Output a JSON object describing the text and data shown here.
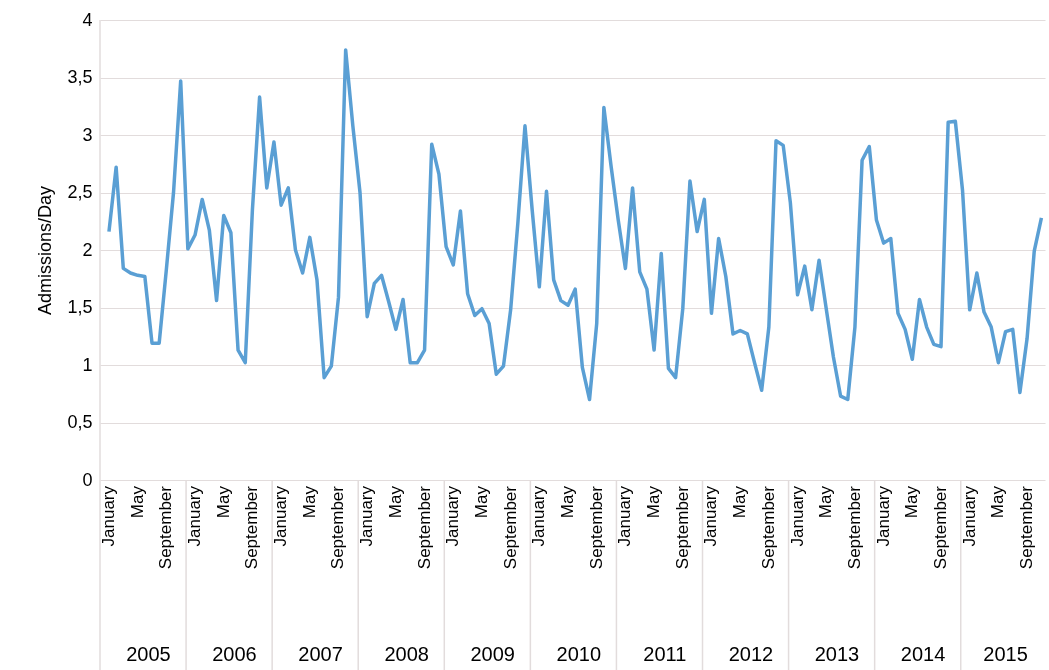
{
  "chart_data": {
    "type": "line",
    "ylabel": "Admissions/Day",
    "categories": [
      "January",
      null,
      null,
      null,
      "May",
      null,
      null,
      null,
      "September",
      null,
      null,
      null,
      "January",
      null,
      null,
      null,
      "May",
      null,
      null,
      null,
      "September",
      null,
      null,
      null,
      "January",
      null,
      null,
      null,
      "May",
      null,
      null,
      null,
      "September",
      null,
      null,
      null,
      "January",
      null,
      null,
      null,
      "May",
      null,
      null,
      null,
      "September",
      null,
      null,
      null,
      "January",
      null,
      null,
      null,
      "May",
      null,
      null,
      null,
      "September",
      null,
      null,
      null,
      "January",
      null,
      null,
      null,
      "May",
      null,
      null,
      null,
      "September",
      null,
      null,
      null,
      "January",
      null,
      null,
      null,
      "May",
      null,
      null,
      null,
      "September",
      null,
      null,
      null,
      "January",
      null,
      null,
      null,
      "May",
      null,
      null,
      null,
      "September",
      null,
      null,
      null,
      "January",
      null,
      null,
      null,
      "May",
      null,
      null,
      null,
      "September",
      null,
      null,
      null,
      "January",
      null,
      null,
      null,
      "May",
      null,
      null,
      null,
      "September",
      null,
      null,
      null,
      "January",
      null,
      null,
      null,
      "May",
      null,
      null,
      null,
      "September",
      null,
      null
    ],
    "values": [
      2.16,
      2.72,
      1.84,
      1.8,
      1.78,
      1.77,
      1.19,
      1.19,
      1.83,
      2.5,
      3.47,
      2.01,
      2.13,
      2.44,
      2.17,
      1.56,
      2.3,
      2.15,
      1.13,
      1.02,
      2.35,
      3.33,
      2.54,
      2.94,
      2.39,
      2.54,
      2.0,
      1.8,
      2.11,
      1.74,
      0.89,
      0.99,
      1.59,
      3.74,
      3.08,
      2.5,
      1.42,
      1.71,
      1.78,
      1.55,
      1.31,
      1.57,
      1.02,
      1.02,
      1.13,
      2.92,
      2.66,
      2.03,
      1.87,
      2.34,
      1.62,
      1.43,
      1.49,
      1.36,
      0.92,
      0.99,
      1.48,
      2.23,
      3.08,
      2.35,
      1.68,
      2.51,
      1.74,
      1.56,
      1.52,
      1.66,
      0.98,
      0.7,
      1.36,
      3.24,
      2.73,
      2.26,
      1.84,
      2.54,
      1.81,
      1.66,
      1.13,
      1.97,
      0.97,
      0.89,
      1.49,
      2.6,
      2.16,
      2.44,
      1.45,
      2.1,
      1.77,
      1.27,
      1.3,
      1.27,
      1.02,
      0.78,
      1.33,
      2.95,
      2.91,
      2.41,
      1.61,
      1.86,
      1.48,
      1.91,
      1.49,
      1.07,
      0.73,
      0.7,
      1.33,
      2.78,
      2.9,
      2.26,
      2.06,
      2.1,
      1.45,
      1.31,
      1.05,
      1.57,
      1.33,
      1.18,
      1.16,
      3.11,
      3.12,
      2.52,
      1.48,
      1.8,
      1.46,
      1.33,
      1.02,
      1.29,
      1.31,
      0.76,
      1.23,
      1.99,
      2.28
    ],
    "color": "#5a9fd4",
    "ylim": [
      0,
      4
    ],
    "yticks": [
      0,
      {
        "value": 0.5,
        "label": "0,5"
      },
      1,
      {
        "value": 1.5,
        "label": "1,5"
      },
      2,
      {
        "value": 2.5,
        "label": "2,5"
      },
      3,
      {
        "value": 3.5,
        "label": "3,5"
      },
      4
    ],
    "grid": "y",
    "annotations": [
      "2005",
      "2006",
      "2007",
      "2008",
      "2009",
      "2010",
      "2011",
      "2012",
      "2013",
      "2014",
      "2015"
    ]
  }
}
